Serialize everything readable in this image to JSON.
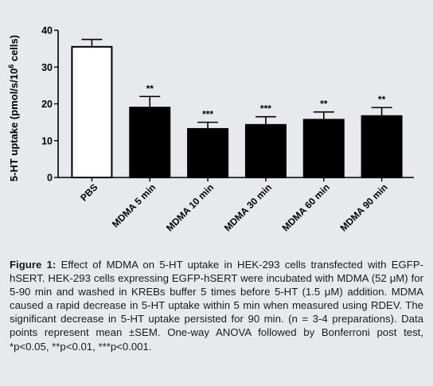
{
  "chart_data": {
    "type": "bar",
    "ylabel": "5-HT uptake (pmol/s/10^6 cells)",
    "ylabel_parts": {
      "main": "5-HT uptake (pmol/s/10",
      "sup": "6",
      "tail": " cells)"
    },
    "ylim": [
      0,
      40
    ],
    "yticks": [
      0,
      10,
      20,
      30,
      40
    ],
    "categories": [
      "PBS",
      "MDMA 5 min",
      "MDMA 10 min",
      "MDMA 30 min",
      "MDMA 60 min",
      "MDMA 90 min"
    ],
    "values": [
      35.5,
      19.0,
      13.2,
      14.3,
      15.7,
      16.7
    ],
    "errors": [
      2.0,
      3.0,
      1.8,
      2.2,
      2.1,
      2.3
    ],
    "significance": [
      "",
      "**",
      "***",
      "***",
      "**",
      "**"
    ],
    "bar_fills": [
      "#ffffff",
      "#000000",
      "#000000",
      "#000000",
      "#000000",
      "#000000"
    ],
    "grid": false,
    "legend": "none"
  },
  "caption": {
    "label": "Figure 1:",
    "text": " Effect of MDMA on 5-HT uptake in HEK-293 cells transfected with EGFP-hSERT. HEK-293 cells expressing EGFP-hSERT were incubated with MDMA (52 μM) for 5-90 min and washed in KREBs buffer 5 times before 5-HT (1.5 μM) addition. MDMA caused a rapid decrease in 5-HT uptake within 5 min when measured using RDEV. The significant decrease in 5-HT uptake persisted for 90 min. (n = 3-4 preparations). Data points represent mean ±SEM. One-way ANOVA followed by Bonferroni post test, *p<0.05, **p<0.01, ***p<0.001."
  },
  "colors": {
    "background": "#e8e9ec",
    "axis": "#000000",
    "bar_stroke": "#000000"
  }
}
